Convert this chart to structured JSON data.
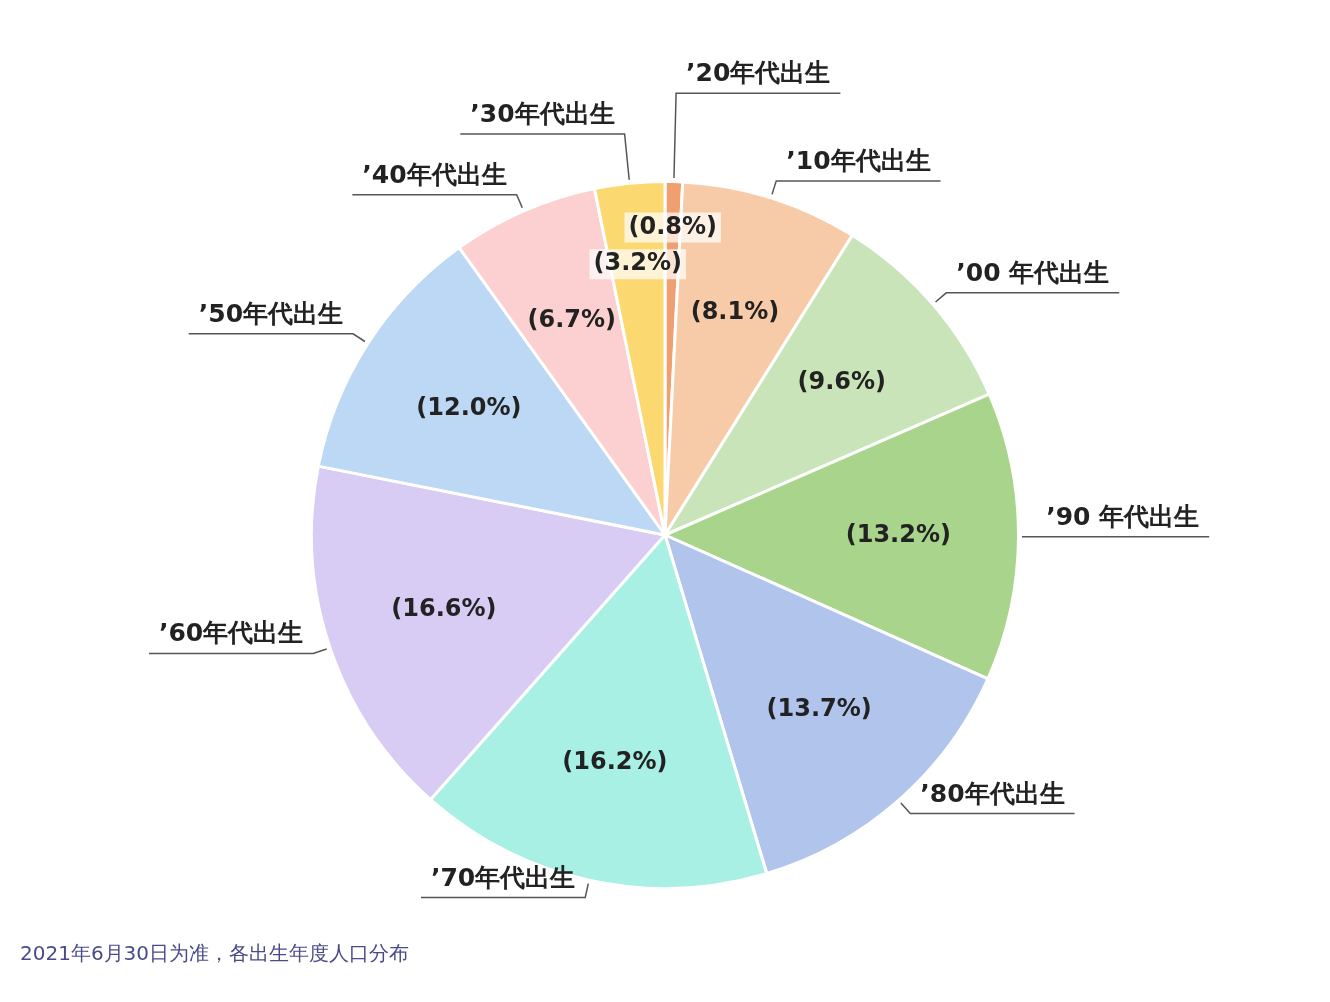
{
  "chart_data": {
    "type": "pie",
    "categories": [
      "’20年代出生",
      "’10年代出生",
      "’00 年代出生",
      "’90 年代出生",
      "’80年代出生",
      "’70年代出生",
      "’60年代出生",
      "’50年代出生",
      "’40年代出生",
      "’30年代出生"
    ],
    "values": [
      0.8,
      8.1,
      9.6,
      13.2,
      13.7,
      16.2,
      16.6,
      12.0,
      6.7,
      3.2
    ],
    "colors": [
      "#f0a070",
      "#f8cba8",
      "#c8e4b8",
      "#a8d48c",
      "#b0c4ec",
      "#a8f0e4",
      "#d8ccf4",
      "#bcd8f4",
      "#fcd0d0",
      "#fcd870"
    ],
    "value_labels": [
      "(0.8%)",
      "(8.1%)",
      "(9.6%)",
      "(13.2%)",
      "(13.7%)",
      "(16.2%)",
      "(16.6%)",
      "(12.0%)",
      "(6.7%)",
      "(3.2%)"
    ],
    "annotations": [
      "2021年6月30日为准，各出生年度人口分布"
    ]
  }
}
